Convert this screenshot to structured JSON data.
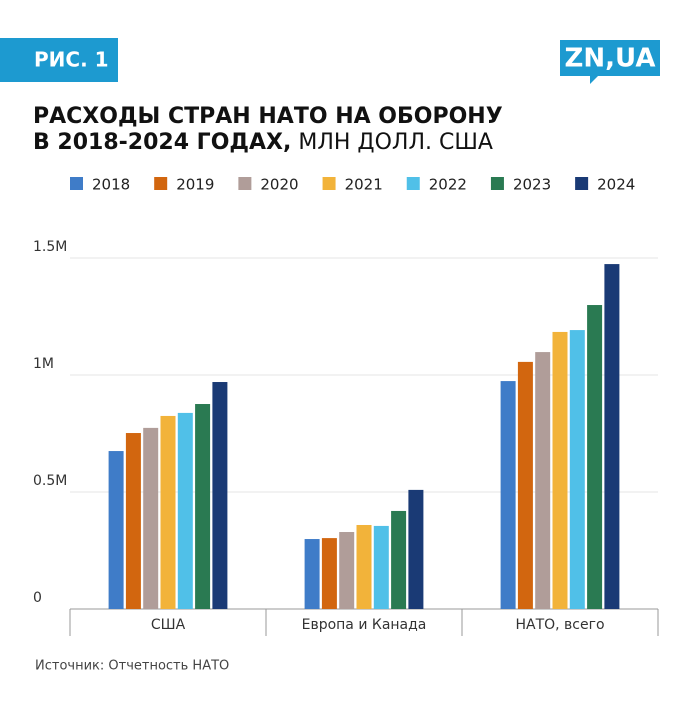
{
  "badge": "РИС. 1",
  "logo": "ZN,UA",
  "source": "Источник: Отчетность НАТО",
  "chart_data": {
    "type": "bar",
    "title": "РАСХОДЫ СТРАН НАТО НА ОБОРОНУ",
    "title_line2": "В 2018-2024 ГОДАХ,",
    "subtitle": "МЛН ДОЛЛ. США",
    "categories": [
      "США",
      "Европа и Канада",
      "НАТО, всего"
    ],
    "series": [
      {
        "name": "2018",
        "color": "#3f7cc8",
        "values": [
          675000,
          299000,
          974000
        ]
      },
      {
        "name": "2019",
        "color": "#d2660f",
        "values": [
          752000,
          303000,
          1056000
        ]
      },
      {
        "name": "2020",
        "color": "#b09d99",
        "values": [
          774000,
          329000,
          1098000
        ]
      },
      {
        "name": "2021",
        "color": "#f2b33a",
        "values": [
          825000,
          359000,
          1184000
        ]
      },
      {
        "name": "2022",
        "color": "#50c0e8",
        "values": [
          838000,
          355000,
          1192000
        ]
      },
      {
        "name": "2023",
        "color": "#2a7a52",
        "values": [
          876000,
          419000,
          1299000
        ]
      },
      {
        "name": "2024",
        "color": "#1a3a75",
        "values": [
          970000,
          509000,
          1474000
        ]
      }
    ],
    "ylim": [
      0,
      1500000
    ],
    "yticks": [
      0,
      {
        "value": 500000,
        "label": "0.5M"
      },
      {
        "value": 1000000,
        "label": "1M"
      },
      {
        "value": 1500000,
        "label": "1.5M"
      }
    ],
    "grid": true
  }
}
